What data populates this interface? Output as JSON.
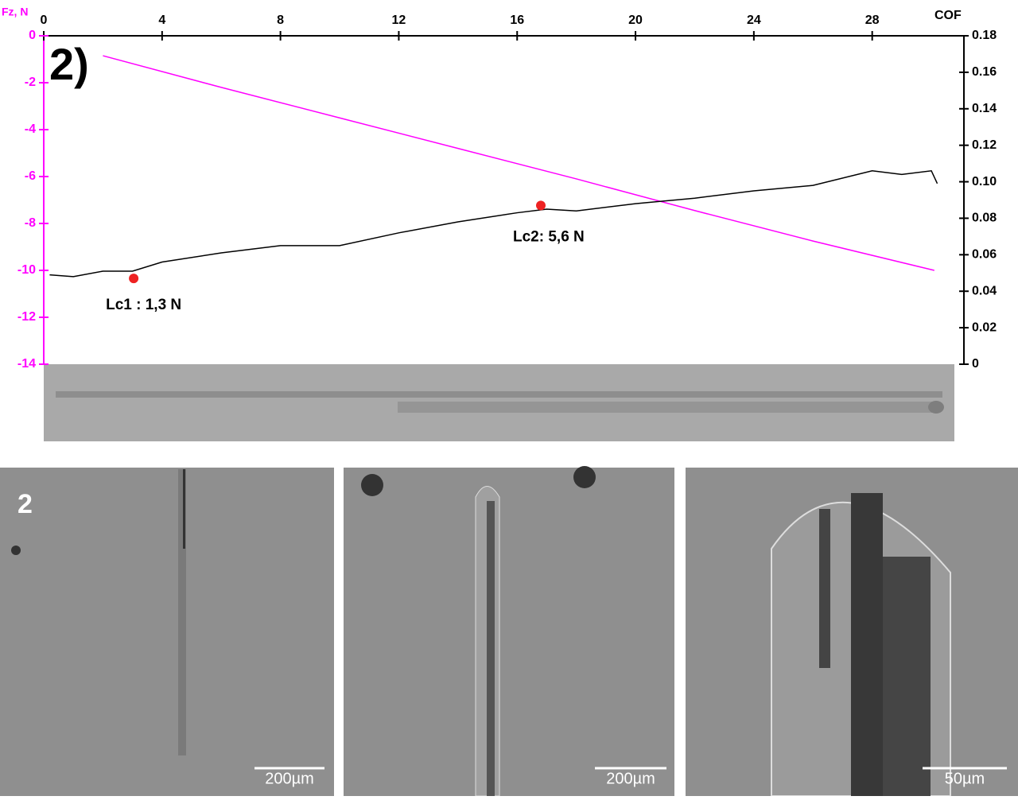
{
  "chart_data": {
    "type": "line",
    "panel_label": "2)",
    "xlim": [
      0,
      31.1
    ],
    "xticks": [
      0,
      4,
      8,
      12,
      16,
      20,
      24,
      28
    ],
    "ylabel": "Fz, N",
    "ylim": [
      -14,
      0
    ],
    "yticks": [
      0,
      -2,
      -4,
      -6,
      -8,
      -10,
      -12,
      -14
    ],
    "ycolor": "#ff00ff",
    "y2label": "COF",
    "y2lim": [
      0,
      0.18
    ],
    "y2ticks": [
      0.18,
      0.16,
      0.14,
      0.12,
      {
        "value": 0.1,
        "label": "0.10"
      },
      0.08,
      0.06,
      0.04,
      0.02,
      0
    ],
    "series": [
      {
        "color": "#ff00ff",
        "x": [
          2,
          6,
          10,
          14,
          18,
          22,
          26,
          30.1
        ],
        "values": [
          -0.85,
          -2.2,
          -3.5,
          -4.8,
          -6.1,
          -7.45,
          -8.75,
          -10
        ]
      },
      {
        "color": "#000000",
        "axis": "y2",
        "x": [
          0.2,
          1,
          2,
          3,
          4,
          6,
          8,
          10,
          12,
          14,
          16,
          17,
          18,
          20,
          22,
          24,
          26,
          28,
          29,
          30,
          30.2
        ],
        "values": [
          0.049,
          0.048,
          0.051,
          0.051,
          0.056,
          0.061,
          0.065,
          0.065,
          0.072,
          0.078,
          0.083,
          0.085,
          0.084,
          0.088,
          0.091,
          0.095,
          0.098,
          0.106,
          0.104,
          0.106,
          0.099
        ]
      }
    ],
    "annotations": [
      {
        "text": "Lc1 : 1,3 N",
        "x": 3.04,
        "value": 0.047,
        "color": "#ee2222"
      },
      {
        "text": "Lc2: 5,6 N",
        "x": 16.8,
        "value": 0.087,
        "color": "#ee2222"
      }
    ]
  },
  "images": {
    "panel_label": "2",
    "scale_labels": [
      "200µm",
      "200µm",
      "50µm"
    ]
  }
}
